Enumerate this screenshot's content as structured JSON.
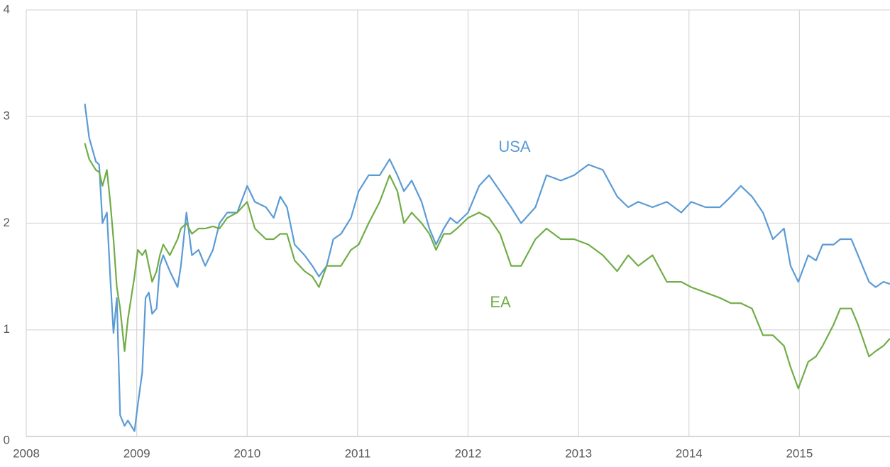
{
  "chart_data": {
    "type": "line",
    "x": [
      2008.53,
      2008.57,
      2008.63,
      2008.66,
      2008.69,
      2008.73,
      2008.76,
      2008.79,
      2008.82,
      2008.85,
      2008.89,
      2008.92,
      2008.98,
      2009.01,
      2009.05,
      2009.08,
      2009.11,
      2009.14,
      2009.18,
      2009.21,
      2009.24,
      2009.3,
      2009.37,
      2009.4,
      2009.45,
      2009.5,
      2009.56,
      2009.62,
      2009.69,
      2009.75,
      2009.82,
      2009.91,
      2010.0,
      2010.07,
      2010.17,
      2010.24,
      2010.3,
      2010.36,
      2010.43,
      2010.52,
      2010.59,
      2010.65,
      2010.72,
      2010.78,
      2010.85,
      2010.94,
      2011.01,
      2011.1,
      2011.2,
      2011.29,
      2011.36,
      2011.42,
      2011.49,
      2011.58,
      2011.65,
      2011.71,
      2011.78,
      2011.84,
      2011.9,
      2012.0,
      2012.1,
      2012.19,
      2012.29,
      2012.39,
      2012.48,
      2012.61,
      2012.71,
      2012.84,
      2012.96,
      2013.09,
      2013.22,
      2013.35,
      2013.45,
      2013.54,
      2013.67,
      2013.8,
      2013.93,
      2014.02,
      2014.15,
      2014.28,
      2014.38,
      2014.47,
      2014.57,
      2014.67,
      2014.76,
      2014.86,
      2014.92,
      2014.99,
      2015.08,
      2015.15,
      2015.21,
      2015.31,
      2015.37,
      2015.47,
      2015.53,
      2015.63,
      2015.69,
      2015.76,
      2015.82
    ],
    "series": [
      {
        "name": "USA",
        "color": "#5b9bd5",
        "values": [
          3.12,
          2.8,
          2.58,
          2.55,
          2.0,
          2.1,
          1.5,
          0.97,
          1.3,
          0.2,
          0.1,
          0.15,
          0.05,
          0.3,
          0.6,
          1.3,
          1.35,
          1.15,
          1.2,
          1.6,
          1.7,
          1.55,
          1.4,
          1.6,
          2.1,
          1.7,
          1.75,
          1.6,
          1.75,
          2.0,
          2.1,
          2.1,
          2.35,
          2.2,
          2.15,
          2.05,
          2.25,
          2.15,
          1.8,
          1.7,
          1.6,
          1.5,
          1.6,
          1.85,
          1.9,
          2.05,
          2.3,
          2.45,
          2.45,
          2.6,
          2.45,
          2.3,
          2.4,
          2.2,
          1.95,
          1.8,
          1.95,
          2.05,
          2.0,
          2.1,
          2.35,
          2.45,
          2.3,
          2.15,
          2.0,
          2.15,
          2.45,
          2.4,
          2.45,
          2.55,
          2.5,
          2.25,
          2.15,
          2.2,
          2.15,
          2.2,
          2.1,
          2.2,
          2.15,
          2.15,
          2.25,
          2.35,
          2.25,
          2.1,
          1.85,
          1.95,
          1.6,
          1.45,
          1.7,
          1.65,
          1.8,
          1.8,
          1.85,
          1.85,
          1.7,
          1.45,
          1.4,
          1.45,
          1.43
        ]
      },
      {
        "name": "EA",
        "color": "#70ad47",
        "values": [
          2.75,
          2.6,
          2.5,
          2.48,
          2.35,
          2.5,
          2.2,
          1.85,
          1.4,
          1.2,
          0.8,
          1.1,
          1.5,
          1.75,
          1.7,
          1.75,
          1.6,
          1.45,
          1.55,
          1.7,
          1.8,
          1.7,
          1.85,
          1.95,
          2.0,
          1.9,
          1.95,
          1.95,
          1.97,
          1.95,
          2.05,
          2.1,
          2.2,
          1.95,
          1.85,
          1.85,
          1.9,
          1.9,
          1.65,
          1.55,
          1.5,
          1.4,
          1.6,
          1.6,
          1.6,
          1.75,
          1.8,
          2.0,
          2.2,
          2.45,
          2.3,
          2.0,
          2.1,
          2.0,
          1.9,
          1.75,
          1.9,
          1.9,
          1.95,
          2.05,
          2.1,
          2.05,
          1.9,
          1.6,
          1.6,
          1.85,
          1.95,
          1.85,
          1.85,
          1.8,
          1.7,
          1.55,
          1.7,
          1.6,
          1.7,
          1.45,
          1.45,
          1.4,
          1.35,
          1.3,
          1.25,
          1.25,
          1.2,
          0.95,
          0.95,
          0.85,
          0.65,
          0.45,
          0.7,
          0.75,
          0.85,
          1.05,
          1.2,
          1.2,
          1.05,
          0.75,
          0.8,
          0.85,
          0.92
        ]
      }
    ],
    "xlim": [
      2008,
      2015.82
    ],
    "xticks": [
      2008,
      2009,
      2010,
      2011,
      2012,
      2013,
      2014,
      2015
    ],
    "ylim": [
      0,
      4
    ],
    "yticks": [
      0,
      1,
      2,
      3,
      4
    ],
    "grid": true
  }
}
